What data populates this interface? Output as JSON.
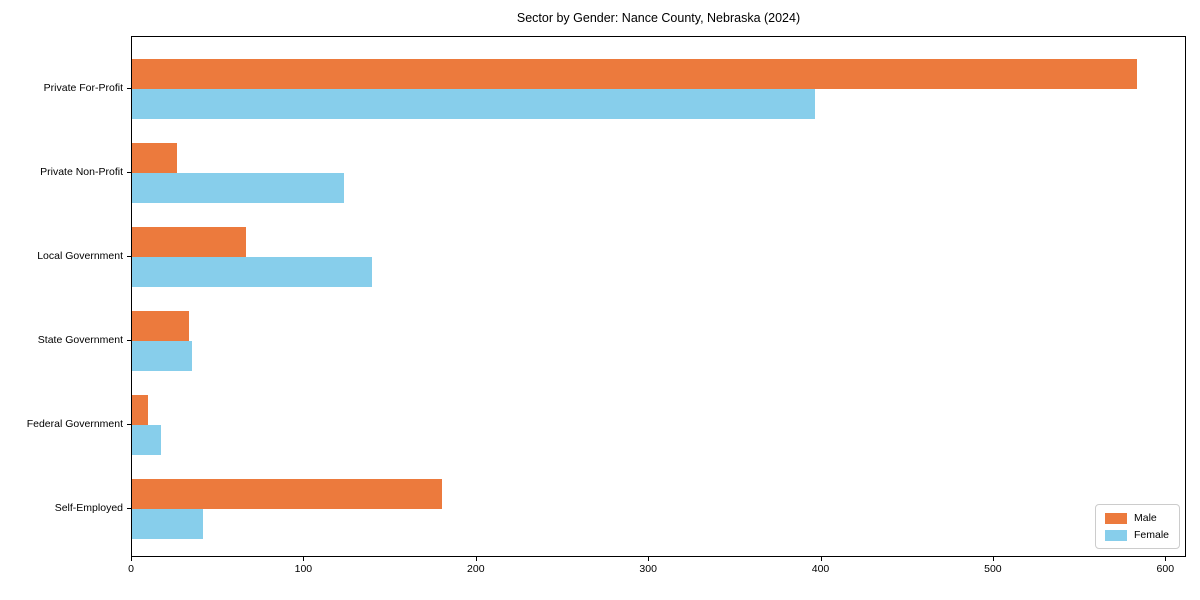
{
  "chart_data": {
    "type": "bar",
    "orientation": "horizontal",
    "title": "Sector by Gender: Nance County, Nebraska (2024)",
    "categories": [
      "Private For-Profit",
      "Private Non-Profit",
      "Local Government",
      "State Government",
      "Federal Government",
      "Self-Employed"
    ],
    "series": [
      {
        "name": "Male",
        "color": "#EC7A3D",
        "values": [
          583,
          26,
          66,
          33,
          9,
          180
        ]
      },
      {
        "name": "Female",
        "color": "#87CEEB",
        "values": [
          396,
          123,
          139,
          35,
          17,
          41
        ]
      }
    ],
    "xlabel": "",
    "ylabel": "",
    "x_ticks": [
      0,
      100,
      200,
      300,
      400,
      500,
      600
    ],
    "xlim": [
      0,
      612
    ],
    "grid": false,
    "legend_position": "lower right",
    "legend_labels": [
      "Male",
      "Female"
    ]
  }
}
